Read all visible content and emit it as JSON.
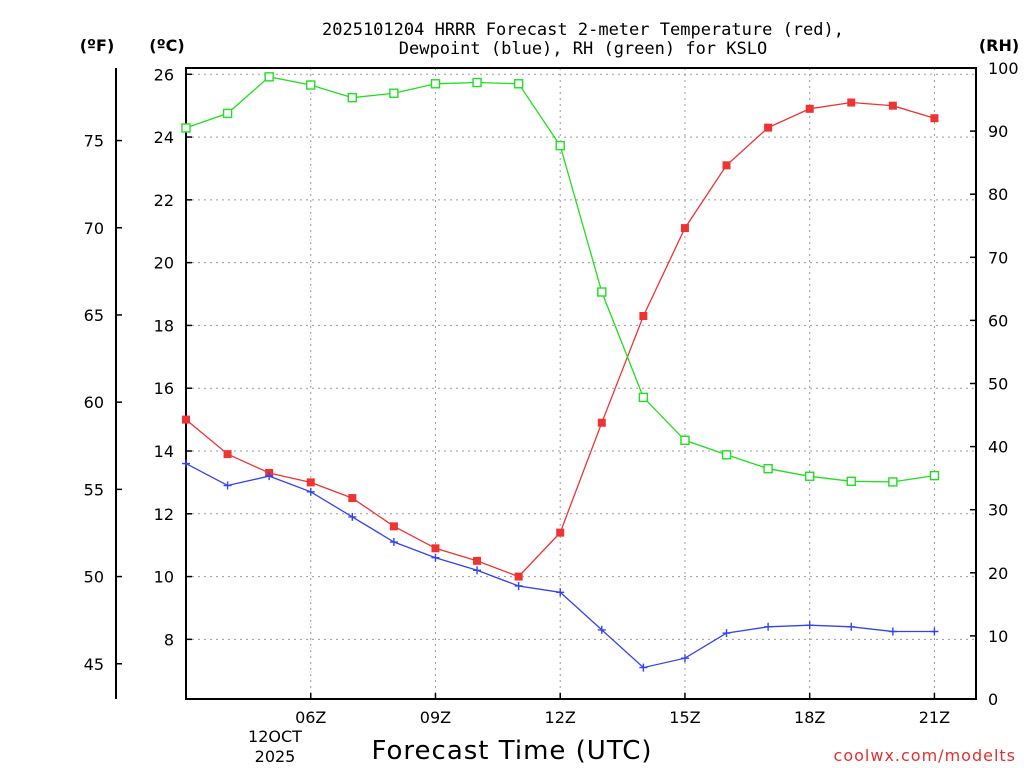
{
  "chart_data": {
    "type": "line",
    "title": "2025101204 HRRR Forecast 2-meter Temperature (red),",
    "subtitle": "Dewpoint (blue), RH (green) for KSLO",
    "xlabel": "Forecast Time (UTC)",
    "credit": "coolwx.com/modelts",
    "units": {
      "fahrenheit": "(ºF)",
      "celsius": "(ºC)",
      "rh": "(RH)"
    },
    "x_hours": [
      3,
      4,
      5,
      6,
      7,
      8,
      9,
      10,
      11,
      12,
      13,
      14,
      15,
      16,
      17,
      18,
      19,
      20,
      21,
      22
    ],
    "xlim": [
      3,
      22
    ],
    "x_ticks": [
      {
        "hour": 6,
        "label": "06Z"
      },
      {
        "hour": 9,
        "label": "09Z"
      },
      {
        "hour": 12,
        "label": "12Z"
      },
      {
        "hour": 15,
        "label": "15Z"
      },
      {
        "hour": 18,
        "label": "18Z"
      },
      {
        "hour": 21,
        "label": "21Z"
      }
    ],
    "date_label": [
      "12OCT",
      "2025"
    ],
    "celsius_axis": {
      "ylim": [
        6.1,
        26.2
      ],
      "ticks": [
        "8",
        "10",
        "12",
        "14",
        "16",
        "18",
        "20",
        "22",
        "24",
        "26"
      ]
    },
    "fahrenheit_axis": {
      "ticks": [
        "45",
        "50",
        "55",
        "60",
        "65",
        "70",
        "75"
      ]
    },
    "rh_axis": {
      "ylim": [
        0,
        100
      ],
      "ticks": [
        "0",
        "10",
        "20",
        "30",
        "40",
        "50",
        "60",
        "70",
        "80",
        "90",
        "100"
      ]
    },
    "series": [
      {
        "name": "Temperature",
        "axis": "celsius",
        "color": "#ee3333",
        "marker": "filled-square",
        "values": [
          15.0,
          13.9,
          13.3,
          13.0,
          12.5,
          11.6,
          10.9,
          10.5,
          10.0,
          11.4,
          14.9,
          18.3,
          21.1,
          23.1,
          24.3,
          24.9,
          25.1,
          25.0,
          24.6
        ]
      },
      {
        "name": "Dewpoint",
        "axis": "celsius",
        "color": "#3344ee",
        "marker": "plus",
        "values": [
          13.6,
          12.9,
          13.2,
          12.7,
          11.9,
          11.1,
          10.6,
          10.2,
          9.7,
          9.5,
          8.3,
          7.1,
          7.4,
          8.2,
          8.4,
          8.45,
          8.4,
          8.25,
          8.25
        ]
      },
      {
        "name": "RH",
        "axis": "rh",
        "color": "#22dd22",
        "marker": "open-square",
        "values": [
          90.5,
          92.8,
          98.6,
          97.3,
          95.3,
          96.0,
          97.5,
          97.7,
          97.5,
          87.7,
          64.5,
          47.8,
          41.0,
          38.7,
          36.5,
          35.3,
          34.5,
          34.4,
          35.4
        ]
      }
    ]
  }
}
